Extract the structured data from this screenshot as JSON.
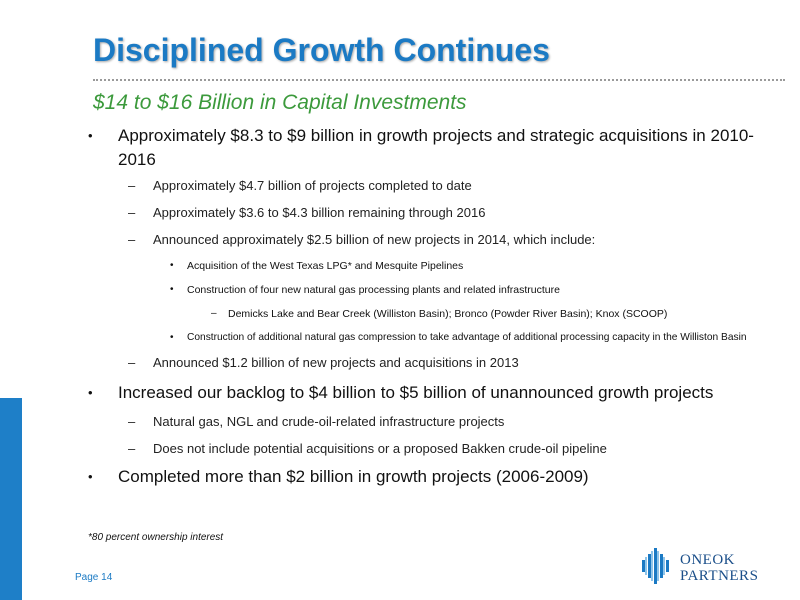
{
  "slide": {
    "title": "Disciplined Growth Continues",
    "subtitle": "$14 to $16 Billion in Capital Investments",
    "footnote": "*80 percent ownership interest",
    "page_label": "Page 14",
    "logo": {
      "line1": "ONEOK",
      "line2": "PARTNERS",
      "icon": "oneok-diamond-logo-icon"
    },
    "colors": {
      "title": "#1b7ac4",
      "subtitle": "#3c9a3c",
      "accent_bar": "#1e7fc8"
    }
  },
  "bullets": {
    "b1": {
      "marker": "•",
      "line1": "Approximately $8.3 to $9 billion in growth projects and strategic acquisitions in 2010-",
      "line2": "2016"
    },
    "b1_1": {
      "marker": "–",
      "text": "Approximately $4.7 billion of projects completed to date"
    },
    "b1_2": {
      "marker": "–",
      "text": "Approximately $3.6 to $4.3 billion remaining through 2016"
    },
    "b1_3": {
      "marker": "–",
      "text": "Announced approximately $2.5 billion of new projects in 2014, which include:"
    },
    "b1_3_1": {
      "marker": "•",
      "text": "Acquisition of the West Texas LPG* and Mesquite Pipelines"
    },
    "b1_3_2": {
      "marker": "•",
      "text": "Construction of four new natural gas processing plants and related infrastructure"
    },
    "b1_3_2_1": {
      "marker": "–",
      "text": "Demicks Lake and Bear Creek (Williston Basin); Bronco (Powder River Basin); Knox (SCOOP)"
    },
    "b1_3_3": {
      "marker": "•",
      "text": "Construction of additional natural gas compression to take advantage of additional processing capacity in the Williston Basin"
    },
    "b1_4": {
      "marker": "–",
      "text": "Announced $1.2 billion of new projects and acquisitions in 2013"
    },
    "b2": {
      "marker": "•",
      "text": "Increased our backlog to $4 billion to $5 billion of unannounced growth projects"
    },
    "b2_1": {
      "marker": "–",
      "text": "Natural gas, NGL and crude-oil-related infrastructure projects"
    },
    "b2_2": {
      "marker": "–",
      "text": "Does not include potential acquisitions or a proposed Bakken crude-oil pipeline"
    },
    "b3": {
      "marker": "•",
      "text": "Completed more than $2 billion in growth projects (2006-2009)"
    }
  }
}
